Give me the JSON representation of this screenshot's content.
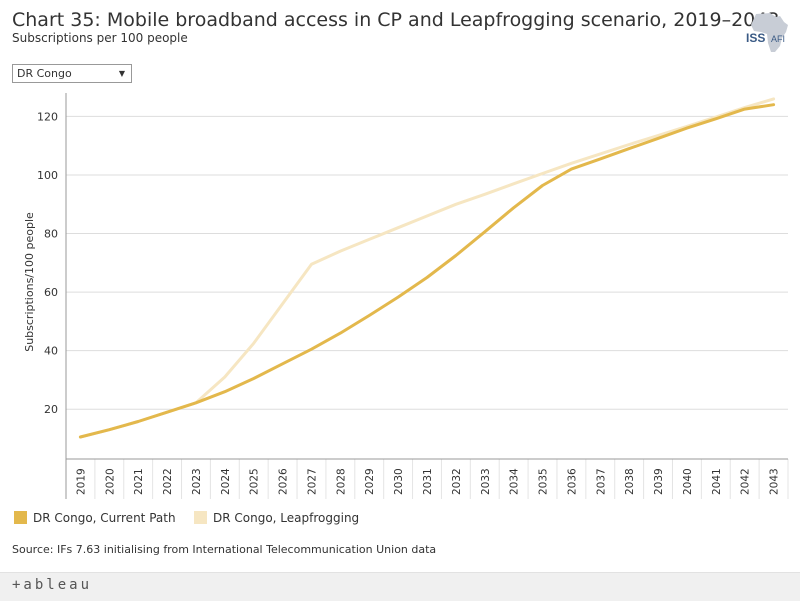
{
  "title": "Chart 35: Mobile broadband access in CP and Leapfrogging scenario, 2019–2043",
  "subtitle": "Subscriptions per 100 people",
  "logo": {
    "text_iss": "ISS",
    "text_afi": "AFI",
    "icon": "africa-map-icon"
  },
  "filter": {
    "selected": "DR Congo",
    "icon": "dropdown-caret-icon"
  },
  "source": "Source: IFs 7.63 initialising from International Telecommunication Union data",
  "footer": {
    "brand": "+ableau",
    "icon": "tableau-logo-icon"
  },
  "colors": {
    "current_path": "#e3b84c",
    "leapfrogging": "#f6e6c2",
    "grid": "#dddddd",
    "axis": "#999999"
  },
  "chart_data": {
    "type": "line",
    "title": "Chart 35: Mobile broadband access in CP and Leapfrogging scenario, 2019–2043",
    "xlabel": "",
    "ylabel": "Subscriptions/100 people",
    "ylim": [
      3,
      128
    ],
    "yticks": [
      20,
      40,
      60,
      80,
      100,
      120
    ],
    "grid": true,
    "legend": "bottom-left",
    "x": [
      2019,
      2020,
      2021,
      2022,
      2023,
      2024,
      2025,
      2026,
      2027,
      2028,
      2029,
      2030,
      2031,
      2032,
      2033,
      2034,
      2035,
      2036,
      2037,
      2038,
      2039,
      2040,
      2041,
      2042,
      2043
    ],
    "series": [
      {
        "name": "DR Congo, Current Path",
        "color": "#e3b84c",
        "values": [
          10.5,
          13,
          15.8,
          19,
          22.2,
          26,
          30.5,
          35.5,
          40.5,
          46,
          52,
          58.3,
          65,
          72.5,
          80.6,
          88.8,
          96.4,
          102,
          105.5,
          109,
          112.5,
          116,
          119.2,
          122.5,
          124
        ]
      },
      {
        "name": "DR Congo, Leapfrogging",
        "color": "#f6e6c2",
        "values": [
          10.5,
          13,
          15.8,
          19,
          22.2,
          31,
          42.5,
          56,
          69.5,
          74,
          78,
          82,
          86,
          90,
          93.4,
          97,
          100.5,
          104,
          107.2,
          110.4,
          113.5,
          116.6,
          119.8,
          123,
          126
        ]
      }
    ]
  }
}
